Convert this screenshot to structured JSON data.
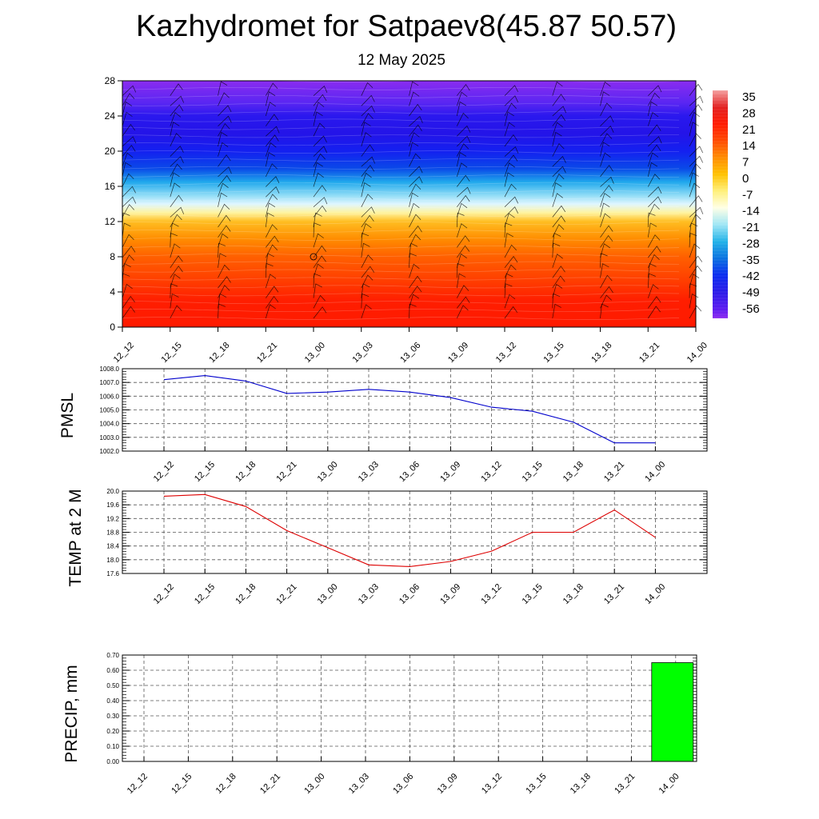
{
  "header": {
    "title": "Kazhydromet for Satpaev8(45.87 50.57)",
    "subtitle": "12 May 2025"
  },
  "time_labels": [
    "12_12",
    "12_15",
    "12_18",
    "12_21",
    "13_00",
    "13_03",
    "13_06",
    "13_09",
    "13_12",
    "13_15",
    "13_18",
    "13_21",
    "14_00"
  ],
  "colors": {
    "pmsl_line": "#0000cc",
    "temp_line": "#dd0000",
    "precip_bar": "#00ff00",
    "grid": "#555555"
  },
  "chart_data": [
    {
      "type": "heatmap",
      "title": "",
      "y_ticks": [
        "0",
        "4",
        "8",
        "12",
        "16",
        "20",
        "24",
        "28"
      ],
      "ylim": [
        0,
        28
      ],
      "x_ticks": [
        "12_12",
        "12_15",
        "12_18",
        "12_21",
        "13_00",
        "13_03",
        "13_06",
        "13_09",
        "13_12",
        "13_15",
        "13_18",
        "13_21",
        "14_00"
      ],
      "colorbar": {
        "labels": [
          "35",
          "28",
          "21",
          "14",
          "7",
          "0",
          "-7",
          "-14",
          "-21",
          "-28",
          "-35",
          "-42",
          "-49",
          "-56"
        ],
        "stops": [
          {
            "v": 35,
            "c": "#f4a0a0"
          },
          {
            "v": 28,
            "c": "#e22020"
          },
          {
            "v": 21,
            "c": "#ff1a00"
          },
          {
            "v": 14,
            "c": "#ff4a00"
          },
          {
            "v": 7,
            "c": "#ff8c00"
          },
          {
            "v": 0,
            "c": "#ffc200"
          },
          {
            "v": -7,
            "c": "#fff07a"
          },
          {
            "v": -14,
            "c": "#ffffe6"
          },
          {
            "v": -21,
            "c": "#9fe6f5"
          },
          {
            "v": -28,
            "c": "#22b2e8"
          },
          {
            "v": -35,
            "c": "#0a72e0"
          },
          {
            "v": -42,
            "c": "#0a2cf0"
          },
          {
            "v": -49,
            "c": "#2a1ae8"
          },
          {
            "v": -56,
            "c": "#5a1af0"
          },
          {
            "v": -60,
            "c": "#8c2cf0"
          }
        ]
      },
      "profile": [
        {
          "h": 0,
          "c": "#ff1a00"
        },
        {
          "h": 3,
          "c": "#ff1e00"
        },
        {
          "h": 5,
          "c": "#ff3a00"
        },
        {
          "h": 8,
          "c": "#ff6000"
        },
        {
          "h": 10,
          "c": "#ff8c00"
        },
        {
          "h": 12,
          "c": "#ffbe22"
        },
        {
          "h": 13,
          "c": "#fff4a0"
        },
        {
          "h": 14,
          "c": "#dff6ff"
        },
        {
          "h": 15,
          "c": "#8fdcf6"
        },
        {
          "h": 16.5,
          "c": "#20a8ec"
        },
        {
          "h": 18,
          "c": "#0a4ae8"
        },
        {
          "h": 20,
          "c": "#1420f0"
        },
        {
          "h": 22,
          "c": "#2414e8"
        },
        {
          "h": 24,
          "c": "#2a18ee"
        },
        {
          "h": 25.5,
          "c": "#5a26f2"
        },
        {
          "h": 28,
          "c": "#8a2cf0"
        }
      ]
    },
    {
      "type": "line",
      "ylabel": "PMSL",
      "ylim": [
        1002.0,
        1008.0
      ],
      "y_ticks": [
        "1002.0",
        "1003.0",
        "1004.0",
        "1005.0",
        "1006.0",
        "1007.0",
        "1008.0"
      ],
      "x": [
        "12_12",
        "12_15",
        "12_18",
        "12_21",
        "13_00",
        "13_03",
        "13_06",
        "13_09",
        "13_12",
        "13_15",
        "13_18",
        "13_21",
        "14_00"
      ],
      "values": [
        1007.2,
        1007.5,
        1007.1,
        1006.2,
        1006.3,
        1006.5,
        1006.3,
        1005.9,
        1005.2,
        1004.9,
        1004.1,
        1002.6,
        1002.6
      ]
    },
    {
      "type": "line",
      "ylabel": "TEMP at 2 M",
      "ylim": [
        17.6,
        20.0
      ],
      "y_ticks": [
        "17.6",
        "18.0",
        "18.4",
        "18.8",
        "19.2",
        "19.6",
        "20.0"
      ],
      "x": [
        "12_12",
        "12_15",
        "12_18",
        "12_21",
        "13_00",
        "13_03",
        "13_06",
        "13_09",
        "13_12",
        "13_15",
        "13_18",
        "13_21",
        "14_00"
      ],
      "values": [
        19.85,
        19.9,
        19.55,
        18.85,
        18.35,
        17.85,
        17.8,
        17.95,
        18.25,
        18.8,
        18.8,
        19.45,
        18.65
      ]
    },
    {
      "type": "bar",
      "ylabel": "PRECIP, mm",
      "ylim": [
        0.0,
        0.7
      ],
      "y_ticks": [
        "0.00",
        "0.10",
        "0.20",
        "0.30",
        "0.40",
        "0.50",
        "0.60",
        "0.70"
      ],
      "categories": [
        "12_12",
        "12_15",
        "12_18",
        "12_21",
        "13_00",
        "13_03",
        "13_06",
        "13_09",
        "13_12",
        "13_15",
        "13_18",
        "13_21",
        "14_00"
      ],
      "values": [
        0,
        0,
        0,
        0,
        0,
        0,
        0,
        0,
        0,
        0,
        0,
        0,
        0.65
      ]
    }
  ]
}
